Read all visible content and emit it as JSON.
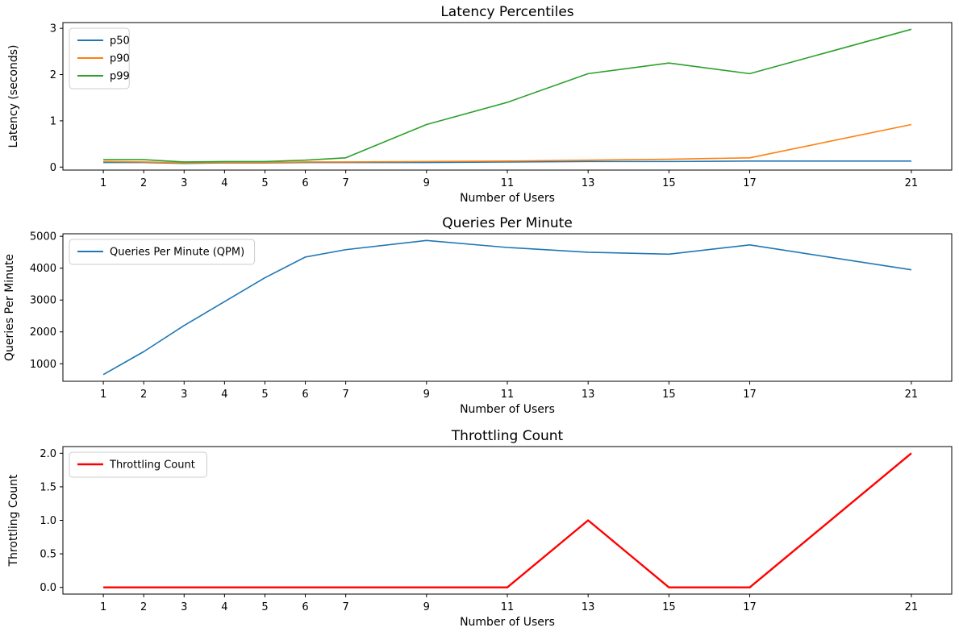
{
  "figure": {
    "background": "#ffffff",
    "frame_color": "#000000",
    "text_color": "#000000",
    "legend_border_color": "#cccccc",
    "legend_background": "#ffffff"
  },
  "chart_data": [
    {
      "type": "line",
      "title": "Latency Percentiles",
      "xlabel": "Number of Users",
      "ylabel": "Latency (seconds)",
      "x": [
        1,
        2,
        3,
        4,
        5,
        6,
        7,
        9,
        11,
        13,
        15,
        17,
        21
      ],
      "xtick_labels": [
        "1",
        "2",
        "3",
        "4",
        "5",
        "6",
        "7",
        "9",
        "11",
        "13",
        "15",
        "17",
        "21"
      ],
      "yticks": [
        0,
        1,
        2,
        3
      ],
      "ytick_labels": [
        "0",
        "1",
        "2",
        "3"
      ],
      "xlim": [
        0,
        22
      ],
      "ylim": [
        -0.065,
        3.125
      ],
      "grid": false,
      "legend_position": "upper-left",
      "series": [
        {
          "name": "p50",
          "color": "#1f77b4",
          "linewidth": 1.6,
          "values": [
            0.1,
            0.1,
            0.08,
            0.09,
            0.09,
            0.1,
            0.1,
            0.1,
            0.11,
            0.12,
            0.12,
            0.13,
            0.13
          ]
        },
        {
          "name": "p90",
          "color": "#ff7f0e",
          "linewidth": 1.6,
          "values": [
            0.12,
            0.11,
            0.09,
            0.1,
            0.1,
            0.11,
            0.11,
            0.12,
            0.13,
            0.15,
            0.17,
            0.2,
            0.92
          ]
        },
        {
          "name": "p99",
          "color": "#2ca02c",
          "linewidth": 1.6,
          "values": [
            0.16,
            0.16,
            0.11,
            0.12,
            0.12,
            0.15,
            0.2,
            0.92,
            1.4,
            2.02,
            2.25,
            2.02,
            2.98
          ]
        }
      ]
    },
    {
      "type": "line",
      "title": "Queries Per Minute",
      "xlabel": "Number of Users",
      "ylabel": "Queries Per Minute",
      "x": [
        1,
        2,
        3,
        4,
        5,
        6,
        7,
        9,
        11,
        13,
        15,
        17,
        21
      ],
      "xtick_labels": [
        "1",
        "2",
        "3",
        "4",
        "5",
        "6",
        "7",
        "9",
        "11",
        "13",
        "15",
        "17",
        "21"
      ],
      "yticks": [
        1000,
        2000,
        3000,
        4000,
        5000
      ],
      "ytick_labels": [
        "1000",
        "2000",
        "3000",
        "4000",
        "5000"
      ],
      "xlim": [
        0,
        22
      ],
      "ylim": [
        450,
        5080
      ],
      "grid": false,
      "legend_position": "upper-left",
      "series": [
        {
          "name": "Queries Per Minute (QPM)",
          "color": "#1f77b4",
          "linewidth": 1.6,
          "values": [
            660,
            1380,
            2200,
            2950,
            3700,
            4350,
            4580,
            4870,
            4650,
            4500,
            4440,
            4730,
            3950
          ]
        }
      ]
    },
    {
      "type": "line",
      "title": "Throttling Count",
      "xlabel": "Number of Users",
      "ylabel": "Throttling Count",
      "x": [
        1,
        2,
        3,
        4,
        5,
        6,
        7,
        9,
        11,
        13,
        15,
        17,
        21
      ],
      "xtick_labels": [
        "1",
        "2",
        "3",
        "4",
        "5",
        "6",
        "7",
        "9",
        "11",
        "13",
        "15",
        "17",
        "21"
      ],
      "yticks": [
        0.0,
        0.5,
        1.0,
        1.5,
        2.0
      ],
      "ytick_labels": [
        "0.0",
        "0.5",
        "1.0",
        "1.5",
        "2.0"
      ],
      "xlim": [
        0,
        22
      ],
      "ylim": [
        -0.1,
        2.1
      ],
      "grid": false,
      "legend_position": "upper-left",
      "series": [
        {
          "name": "Throttling Count",
          "color": "#ff0000",
          "linewidth": 2.4,
          "values": [
            0,
            0,
            0,
            0,
            0,
            0,
            0,
            0,
            0,
            1,
            0,
            0,
            2
          ]
        }
      ]
    }
  ]
}
